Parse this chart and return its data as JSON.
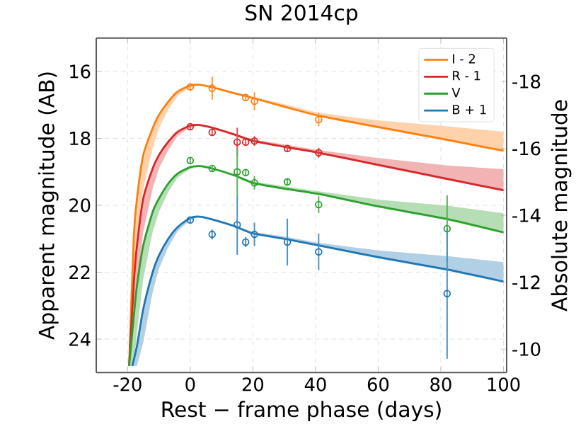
{
  "chart_data": {
    "type": "line",
    "title": "SN 2014cp",
    "xlabel": "Rest − frame phase (days)",
    "ylabel": "Apparent magnitude (AB)",
    "y2label": "Absolute magnitude",
    "xlim": [
      -30,
      101
    ],
    "xticks": [
      -20,
      0,
      20,
      40,
      60,
      80,
      100
    ],
    "ylim": [
      25,
      15
    ],
    "yticks": [
      16,
      18,
      20,
      22,
      24
    ],
    "y2lim": [
      -9.3,
      -19.3
    ],
    "y2ticks": [
      -10,
      -12,
      -14,
      -16,
      -18
    ],
    "grid": true,
    "legend": "top right",
    "line_style": "solid",
    "series": [
      {
        "name": "I - 2",
        "color": "#ff7f0e",
        "x": [
          -19.5,
          -18,
          -17,
          -15,
          -12,
          -10,
          -7,
          -4,
          0,
          3,
          7,
          14,
          20,
          30,
          41,
          60,
          82,
          100
        ],
        "values": [
          24.8,
          20.9,
          19.8,
          18.5,
          17.7,
          17.3,
          16.9,
          16.6,
          16.42,
          16.4,
          16.47,
          16.65,
          16.79,
          17.05,
          17.32,
          17.66,
          18.04,
          18.37
        ],
        "lower": [
          24.8,
          20.9,
          19.8,
          18.5,
          17.7,
          17.3,
          16.9,
          16.6,
          16.4,
          16.38,
          16.45,
          16.62,
          16.75,
          16.98,
          17.24,
          17.46,
          17.64,
          17.8
        ],
        "upper": [
          24.8,
          22.5,
          21.0,
          19.5,
          18.3,
          17.7,
          17.15,
          16.72,
          16.47,
          16.42,
          16.5,
          16.67,
          16.82,
          17.08,
          17.35,
          17.7,
          18.08,
          18.4
        ]
      },
      {
        "name": "R - 1",
        "color": "#d62728",
        "x": [
          -19.5,
          -18,
          -17,
          -15,
          -12,
          -10,
          -7,
          -4,
          0,
          3,
          7,
          14,
          20,
          30,
          41,
          60,
          82,
          100
        ],
        "values": [
          24.8,
          22.3,
          21.2,
          19.8,
          18.9,
          18.5,
          18.1,
          17.8,
          17.62,
          17.6,
          17.68,
          17.88,
          18.07,
          18.25,
          18.43,
          18.79,
          19.21,
          19.55
        ],
        "lower": [
          24.8,
          22.3,
          21.2,
          19.8,
          18.9,
          18.5,
          18.1,
          17.8,
          17.6,
          17.58,
          17.66,
          17.85,
          18.03,
          18.18,
          18.35,
          18.59,
          18.81,
          18.92
        ],
        "upper": [
          24.8,
          24.0,
          22.5,
          20.8,
          19.5,
          18.9,
          18.35,
          17.92,
          17.67,
          17.62,
          17.71,
          17.91,
          18.1,
          18.28,
          18.46,
          18.83,
          19.25,
          19.58
        ]
      },
      {
        "name": "V",
        "color": "#2ca02c",
        "x": [
          -19.5,
          -18,
          -17,
          -15,
          -12,
          -10,
          -7,
          -4,
          0,
          3,
          7,
          14,
          20,
          30,
          41,
          60,
          82,
          100
        ],
        "values": [
          24.8,
          23.3,
          22.4,
          21.2,
          20.2,
          19.8,
          19.35,
          19.05,
          18.86,
          18.83,
          18.9,
          19.1,
          19.33,
          19.5,
          19.66,
          20.03,
          20.41,
          20.81
        ],
        "lower": [
          24.8,
          23.3,
          22.4,
          21.2,
          20.2,
          19.8,
          19.35,
          19.05,
          18.84,
          18.81,
          18.88,
          19.07,
          19.29,
          19.43,
          19.58,
          19.83,
          20.01,
          20.24
        ],
        "upper": [
          24.8,
          24.8,
          23.8,
          22.2,
          20.8,
          20.2,
          19.6,
          19.17,
          18.91,
          18.85,
          18.93,
          19.13,
          19.36,
          19.53,
          19.69,
          20.07,
          20.45,
          20.84
        ]
      },
      {
        "name": "B + 1",
        "color": "#1f77b4",
        "x": [
          -18.5,
          -17,
          -15,
          -12,
          -10,
          -7,
          -4,
          0,
          3,
          7,
          14,
          20,
          30,
          41,
          60,
          82,
          100
        ],
        "values": [
          24.8,
          24.2,
          23.1,
          22.0,
          21.5,
          21.0,
          20.65,
          20.38,
          20.34,
          20.42,
          20.62,
          20.84,
          21.0,
          21.2,
          21.55,
          21.92,
          22.28
        ],
        "lower": [
          24.8,
          24.2,
          23.1,
          22.0,
          21.5,
          21.0,
          20.65,
          20.36,
          20.32,
          20.4,
          20.59,
          20.8,
          20.93,
          21.12,
          21.35,
          21.52,
          21.7
        ],
        "upper": [
          24.8,
          24.8,
          24.1,
          22.6,
          21.9,
          21.25,
          20.77,
          20.43,
          20.36,
          20.45,
          20.65,
          20.87,
          21.03,
          21.23,
          21.59,
          21.96,
          22.31
        ]
      },
      {
        "type": "scatter",
        "marker": "circle",
        "color": "#ff7f0e",
        "x": [
          0,
          7,
          17.7,
          20.5,
          41
        ],
        "values": [
          16.46,
          16.5,
          16.78,
          16.89,
          17.44
        ],
        "errors": [
          0.08,
          0.34,
          0.1,
          0.27,
          0.2
        ]
      },
      {
        "type": "scatter",
        "marker": "circle",
        "color": "#d62728",
        "x": [
          0,
          7,
          15,
          17.7,
          20.5,
          31,
          41
        ],
        "values": [
          17.65,
          17.82,
          18.11,
          18.11,
          18.08,
          18.3,
          18.43
        ],
        "errors": [
          0.08,
          0.1,
          0.43,
          0.1,
          0.15,
          0.1,
          0.15
        ]
      },
      {
        "type": "scatter",
        "marker": "circle",
        "color": "#2ca02c",
        "x": [
          0,
          7,
          15,
          17.7,
          20.5,
          31,
          41,
          82
        ],
        "values": [
          18.66,
          18.9,
          19.0,
          19.02,
          19.33,
          19.3,
          19.98,
          20.7
        ],
        "errors": [
          0.08,
          0.08,
          0.68,
          0.1,
          0.2,
          0.1,
          0.25,
          1.0
        ]
      },
      {
        "type": "scatter",
        "marker": "circle",
        "color": "#1f77b4",
        "x": [
          0,
          7,
          15,
          17.7,
          20.5,
          31,
          41,
          82
        ],
        "values": [
          20.44,
          20.87,
          20.58,
          21.1,
          20.87,
          21.1,
          21.39,
          22.64
        ],
        "errors": [
          0.08,
          0.15,
          0.9,
          0.15,
          0.35,
          0.7,
          0.55,
          1.95
        ]
      }
    ]
  }
}
